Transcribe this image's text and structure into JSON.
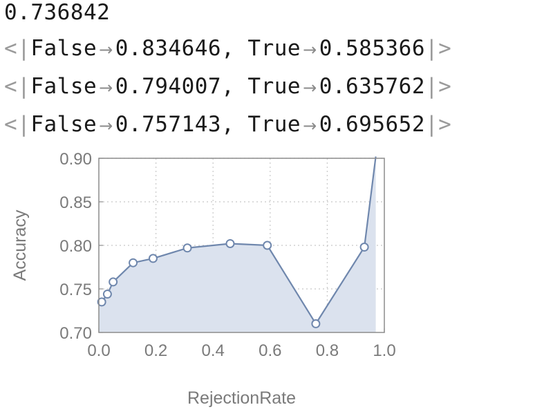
{
  "output_lines": {
    "line1": "0.736842",
    "line2": {
      "open": "<|",
      "false_key": "False",
      "false_val": "0.834646,",
      "true_key": "True",
      "true_val": "0.585366",
      "close": "|>"
    },
    "line3": {
      "open": "<|",
      "false_key": "False",
      "false_val": "0.794007,",
      "true_key": "True",
      "true_val": "0.635762",
      "close": "|>"
    },
    "line4": {
      "open": "<|",
      "false_key": "False",
      "false_val": "0.757143,",
      "true_key": "True",
      "true_val": "0.695652",
      "close": "|>"
    },
    "arrow": "→"
  },
  "colors": {
    "line": "#6f87ad",
    "fill": "#dbe2ee",
    "grid": "#c8c8c8",
    "frame": "#8c8c8c"
  },
  "chart_data": {
    "type": "line",
    "title": "",
    "xlabel": "RejectionRate",
    "ylabel": "Accuracy",
    "xlim": [
      0.0,
      1.0
    ],
    "ylim": [
      0.7,
      0.9
    ],
    "xticks": [
      "0.0",
      "0.2",
      "0.4",
      "0.6",
      "0.8",
      "1.0"
    ],
    "yticks": [
      "0.70",
      "0.75",
      "0.80",
      "0.85",
      "0.90"
    ],
    "grid": true,
    "filled": true,
    "x": [
      0.0,
      0.01,
      0.03,
      0.05,
      0.12,
      0.19,
      0.31,
      0.46,
      0.59,
      0.76,
      0.93,
      0.97
    ],
    "y": [
      0.737,
      0.735,
      0.744,
      0.758,
      0.78,
      0.785,
      0.797,
      0.802,
      0.8,
      0.71,
      0.798,
      0.902
    ],
    "markers": [
      false,
      true,
      true,
      true,
      true,
      true,
      true,
      true,
      true,
      true,
      true,
      false
    ]
  }
}
